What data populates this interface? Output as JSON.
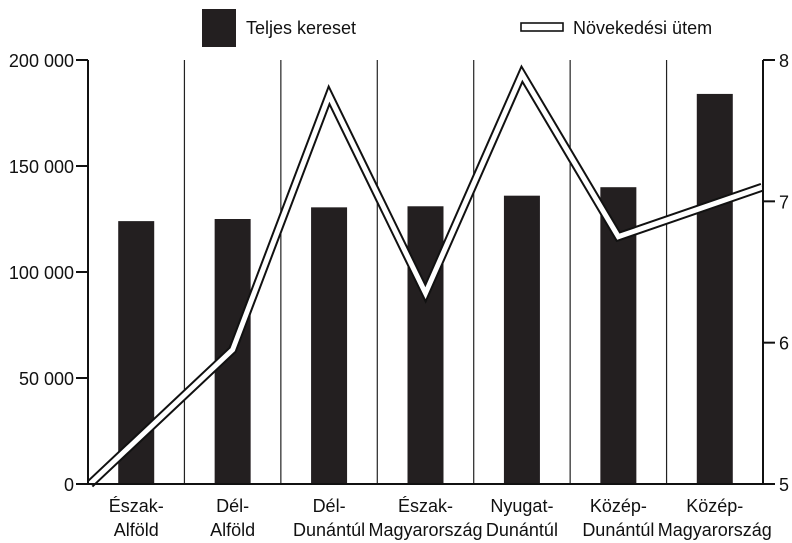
{
  "chart_data": {
    "type": "bar",
    "categories": [
      [
        "Észak-",
        "Alföld"
      ],
      [
        "Dél-",
        "Alföld"
      ],
      [
        "Dél-",
        "Dunántúl"
      ],
      [
        "Észak-",
        "Magyarország"
      ],
      [
        "Nyugat-",
        "Dunántúl"
      ],
      [
        "Közép-",
        "Dunántúl"
      ],
      [
        "Közép-",
        "Magyarország"
      ]
    ],
    "series": [
      {
        "name": "Teljes kereset",
        "type": "bar",
        "axis": "left",
        "color": "#231f20",
        "values": [
          124000,
          125000,
          130500,
          131000,
          136000,
          140000,
          184000
        ]
      },
      {
        "name": "Növekedési ütem",
        "type": "line",
        "axis": "right",
        "style": "double-outline",
        "values": [
          5.0,
          5.95,
          7.75,
          6.35,
          7.9,
          6.75,
          7.1
        ]
      }
    ],
    "y_left": {
      "range": [
        0,
        200000
      ],
      "ticks": [
        0,
        50000,
        100000,
        150000,
        200000
      ],
      "tick_labels": [
        "0",
        "50 000",
        "100 000",
        "150 000",
        "200 000"
      ]
    },
    "y_right": {
      "range": [
        5,
        8
      ],
      "ticks": [
        5,
        6,
        7,
        8
      ],
      "tick_labels": [
        "5",
        "6",
        "7",
        "8"
      ]
    },
    "grid": "vertical",
    "legend_position": "top"
  }
}
